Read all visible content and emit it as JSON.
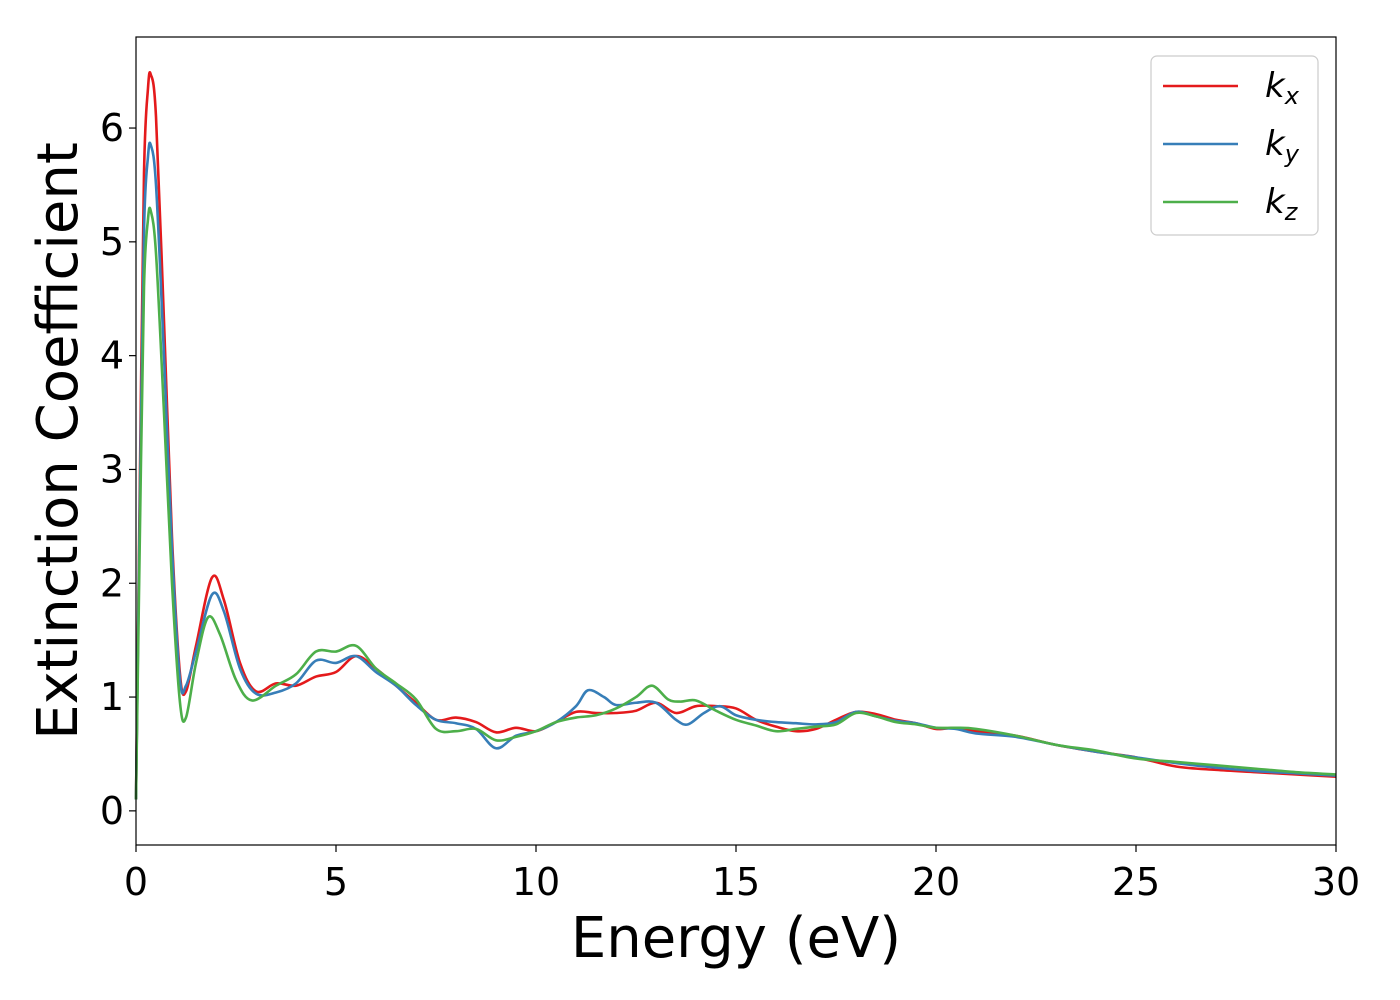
{
  "chart_data": {
    "type": "line",
    "xlabel": "Energy (eV)",
    "ylabel": "Extinction Coefficient",
    "xlim": [
      0,
      30
    ],
    "ylim": [
      -0.3,
      6.8
    ],
    "xticks": [
      0,
      5,
      10,
      15,
      20,
      25,
      30
    ],
    "yticks": [
      0,
      1,
      2,
      3,
      4,
      5,
      6
    ],
    "grid": false,
    "legend_position": "top-right",
    "series": [
      {
        "name": "k",
        "subscript": "x",
        "color": "#e41a1c",
        "x": [
          0,
          0.1,
          0.2,
          0.3,
          0.37,
          0.5,
          0.7,
          0.9,
          1.1,
          1.25,
          1.5,
          1.9,
          2.2,
          2.6,
          3.0,
          3.5,
          4.0,
          4.5,
          5.0,
          5.5,
          6.0,
          6.5,
          7.0,
          7.5,
          8.0,
          8.5,
          9.0,
          9.5,
          10.0,
          10.5,
          11.0,
          11.5,
          12.0,
          12.5,
          13.0,
          13.5,
          14.0,
          14.5,
          15.0,
          15.5,
          16.0,
          16.5,
          17.0,
          17.5,
          18.0,
          18.5,
          19.0,
          19.5,
          20.0,
          20.5,
          21.0,
          22.0,
          23.0,
          24.0,
          25.0,
          26.0,
          27.0,
          28.0,
          29.0,
          30.0
        ],
        "y": [
          0.1,
          3.0,
          5.6,
          6.35,
          6.47,
          6.1,
          4.3,
          2.4,
          1.2,
          1.05,
          1.45,
          2.05,
          1.85,
          1.3,
          1.05,
          1.12,
          1.1,
          1.18,
          1.22,
          1.36,
          1.25,
          1.1,
          0.95,
          0.8,
          0.82,
          0.78,
          0.69,
          0.73,
          0.7,
          0.78,
          0.87,
          0.86,
          0.86,
          0.88,
          0.95,
          0.86,
          0.92,
          0.92,
          0.9,
          0.8,
          0.74,
          0.7,
          0.72,
          0.8,
          0.87,
          0.85,
          0.8,
          0.77,
          0.72,
          0.73,
          0.7,
          0.66,
          0.58,
          0.52,
          0.47,
          0.39,
          0.36,
          0.34,
          0.32,
          0.3
        ]
      },
      {
        "name": "k",
        "subscript": "y",
        "color": "#377eb8",
        "x": [
          0,
          0.1,
          0.2,
          0.3,
          0.37,
          0.5,
          0.7,
          0.9,
          1.1,
          1.25,
          1.5,
          1.9,
          2.2,
          2.6,
          3.0,
          3.5,
          4.0,
          4.5,
          5.0,
          5.5,
          6.0,
          6.5,
          7.0,
          7.5,
          8.0,
          8.5,
          9.0,
          9.5,
          10.0,
          10.5,
          11.0,
          11.3,
          11.7,
          12.0,
          12.5,
          13.0,
          13.5,
          13.8,
          14.2,
          14.6,
          15.0,
          15.5,
          16.0,
          16.5,
          17.0,
          17.5,
          18.0,
          18.5,
          19.0,
          19.5,
          20.0,
          20.5,
          21.0,
          22.0,
          23.0,
          24.0,
          25.0,
          26.0,
          27.0,
          28.0,
          29.0,
          30.0
        ],
        "y": [
          0.1,
          2.8,
          5.1,
          5.75,
          5.85,
          5.5,
          4.0,
          2.3,
          1.15,
          1.1,
          1.4,
          1.9,
          1.75,
          1.25,
          1.03,
          1.04,
          1.12,
          1.32,
          1.3,
          1.36,
          1.22,
          1.1,
          0.93,
          0.8,
          0.77,
          0.72,
          0.55,
          0.66,
          0.7,
          0.78,
          0.92,
          1.06,
          1.0,
          0.93,
          0.95,
          0.95,
          0.8,
          0.76,
          0.86,
          0.92,
          0.84,
          0.8,
          0.78,
          0.77,
          0.76,
          0.78,
          0.87,
          0.83,
          0.79,
          0.77,
          0.73,
          0.72,
          0.68,
          0.65,
          0.58,
          0.52,
          0.47,
          0.42,
          0.38,
          0.35,
          0.33,
          0.31
        ]
      },
      {
        "name": "k",
        "subscript": "z",
        "color": "#4daf4a",
        "x": [
          0,
          0.1,
          0.2,
          0.3,
          0.37,
          0.5,
          0.7,
          0.9,
          1.1,
          1.25,
          1.5,
          1.8,
          2.1,
          2.5,
          2.9,
          3.5,
          4.0,
          4.5,
          5.0,
          5.5,
          6.0,
          6.5,
          7.0,
          7.5,
          8.0,
          8.5,
          9.0,
          9.5,
          10.0,
          10.5,
          11.0,
          11.5,
          12.0,
          12.5,
          12.9,
          13.3,
          13.6,
          14.0,
          14.5,
          15.0,
          15.5,
          16.0,
          16.5,
          17.0,
          17.5,
          18.0,
          18.5,
          19.0,
          19.5,
          20.0,
          20.5,
          21.0,
          22.0,
          23.0,
          24.0,
          25.0,
          26.0,
          27.0,
          28.0,
          29.0,
          30.0
        ],
        "y": [
          0.1,
          2.5,
          4.6,
          5.2,
          5.27,
          4.9,
          3.5,
          2.0,
          0.95,
          0.82,
          1.3,
          1.7,
          1.55,
          1.15,
          0.97,
          1.1,
          1.2,
          1.4,
          1.4,
          1.45,
          1.25,
          1.12,
          0.98,
          0.72,
          0.7,
          0.72,
          0.62,
          0.65,
          0.7,
          0.78,
          0.82,
          0.84,
          0.9,
          1.0,
          1.1,
          0.98,
          0.96,
          0.97,
          0.88,
          0.8,
          0.75,
          0.7,
          0.72,
          0.74,
          0.76,
          0.86,
          0.83,
          0.78,
          0.76,
          0.73,
          0.73,
          0.72,
          0.66,
          0.58,
          0.53,
          0.46,
          0.43,
          0.4,
          0.37,
          0.34,
          0.32
        ]
      }
    ]
  }
}
